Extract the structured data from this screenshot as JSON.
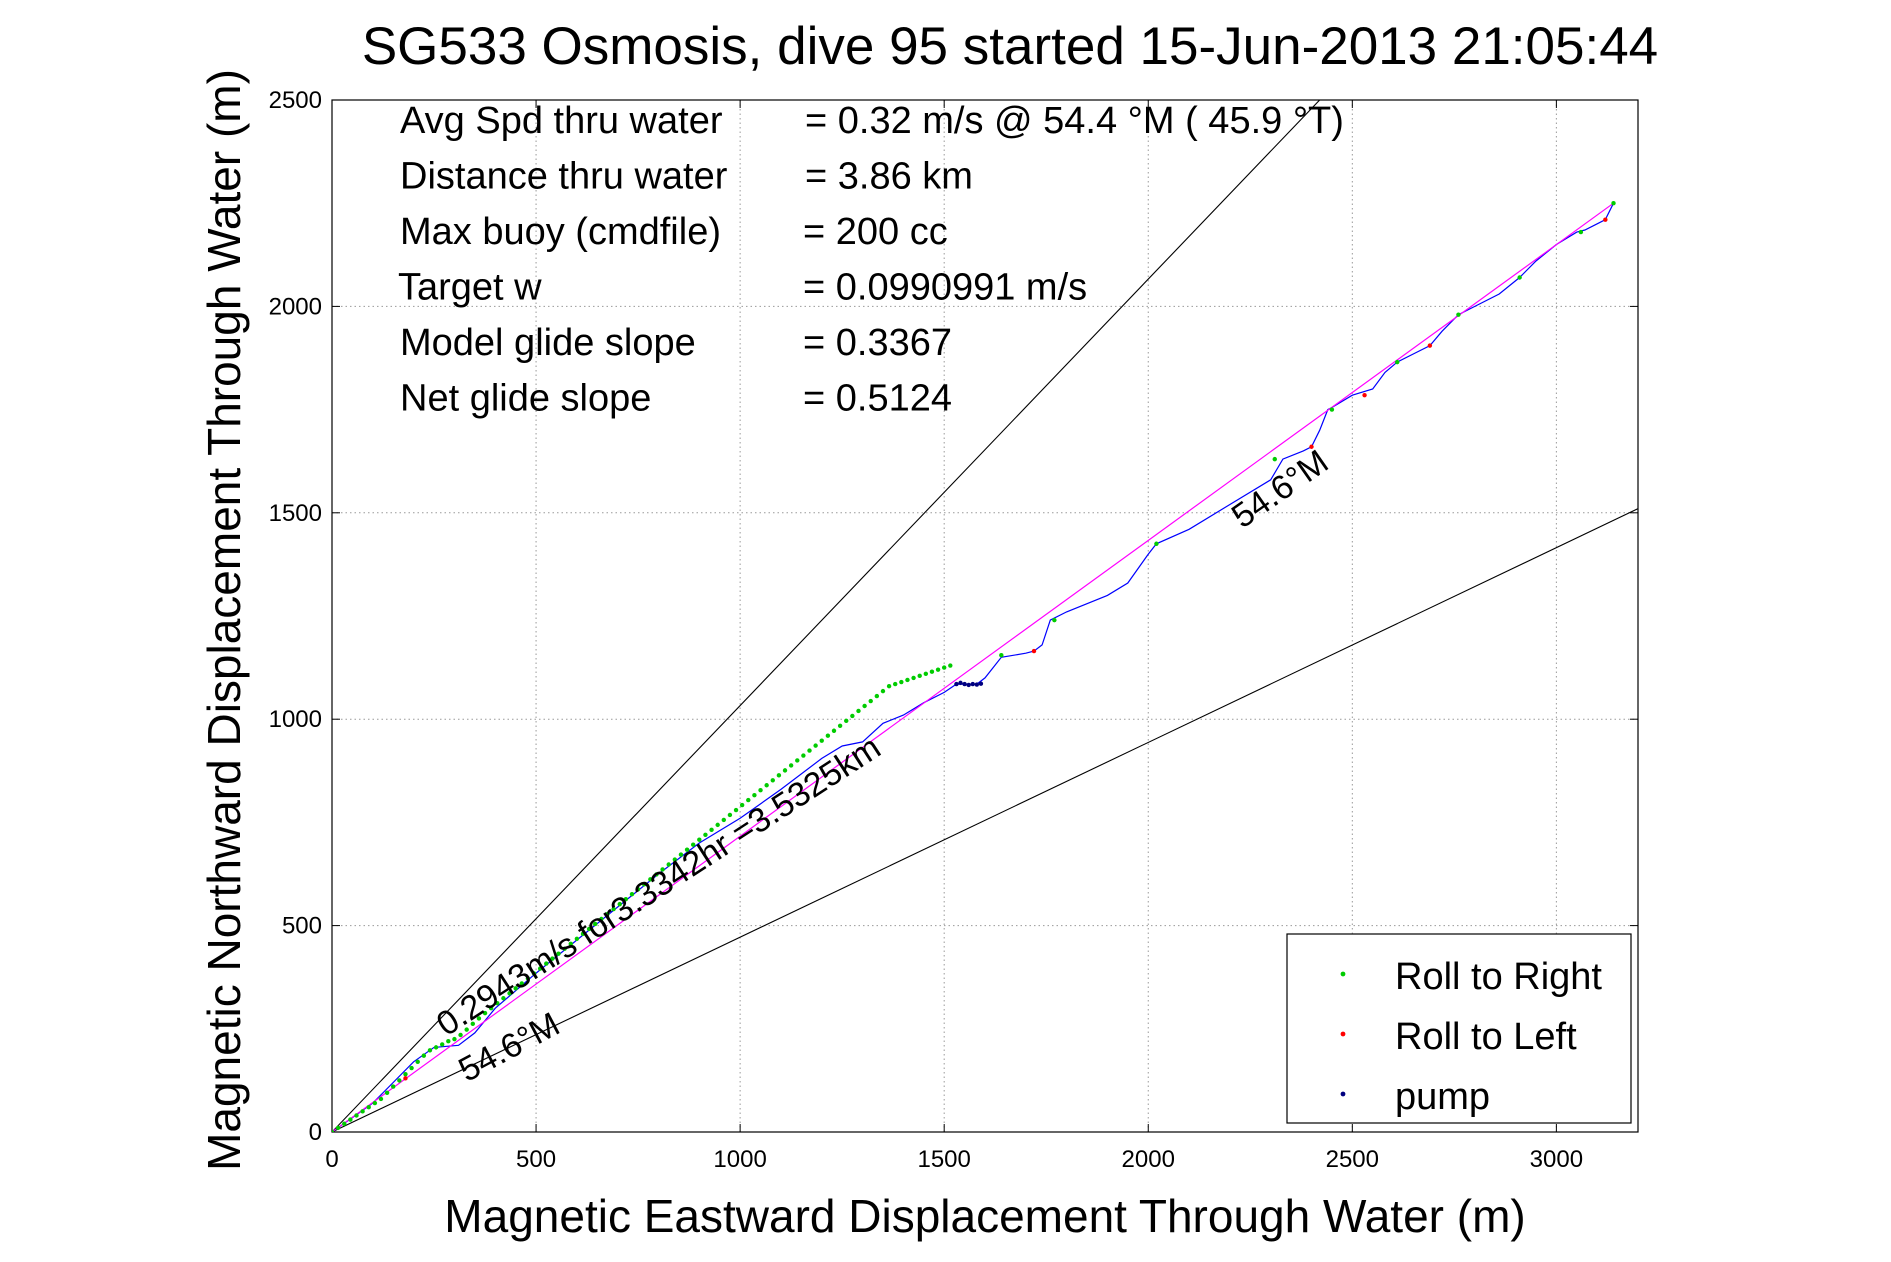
{
  "chart_data": {
    "type": "line",
    "title": "SG533 Osmosis, dive 95 started 15-Jun-2013 21:05:44",
    "xlabel": "Magnetic Eastward Displacement Through Water (m)",
    "ylabel": "Magnetic Northward Displacement Through Water (m)",
    "xlim": [
      0,
      3200
    ],
    "ylim": [
      0,
      2500
    ],
    "xticks": [
      0,
      500,
      1000,
      1500,
      2000,
      2500,
      3000
    ],
    "yticks": [
      0,
      500,
      1000,
      1500,
      2000,
      2500
    ],
    "grid": true,
    "legend_position": "bottom-right",
    "legend": [
      {
        "label": "Roll to Right",
        "color": "#00cc00"
      },
      {
        "label": "Roll to Left",
        "color": "#ff0000"
      },
      {
        "label": "pump",
        "color": "#000080"
      }
    ],
    "stats": [
      {
        "label": "Avg Spd thru water",
        "value": "=  0.32 m/s @  54.4 °M ( 45.9 °T)"
      },
      {
        "label": "Distance thru water",
        "value": "=  3.86 km"
      },
      {
        "label": "Max buoy (cmdfile)",
        "value": "= 200 cc"
      },
      {
        "label": "Target w",
        "value": "= 0.0990991 m/s"
      },
      {
        "label": "Model glide slope",
        "value": "= 0.3367"
      },
      {
        "label": "Net glide slope",
        "value": "= 0.5124"
      }
    ],
    "annotations": {
      "heading_upper": "54.6°M",
      "heading_lower": "54.6°M",
      "speed": "0.2943m/s for3.3342hr =3.5325km"
    },
    "reference_lines": [
      {
        "name": "upper",
        "x": [
          0,
          2420
        ],
        "y": [
          0,
          2500
        ],
        "color": "#000000"
      },
      {
        "name": "lower",
        "x": [
          0,
          3200
        ],
        "y": [
          0,
          1510
        ],
        "color": "#000000"
      }
    ],
    "series": [
      {
        "role": "track",
        "color": "#0000ff",
        "x": [
          0,
          50,
          100,
          150,
          200,
          250,
          310,
          350,
          400,
          500,
          600,
          700,
          800,
          900,
          1000,
          1100,
          1200,
          1250,
          1300,
          1350,
          1400,
          1450,
          1500,
          1530,
          1560,
          1580,
          1600,
          1640,
          1700,
          1720,
          1740,
          1760,
          1800,
          1900,
          1950,
          2000,
          2020,
          2100,
          2200,
          2300,
          2330,
          2380,
          2400,
          2420,
          2440,
          2450,
          2500,
          2550,
          2580,
          2610,
          2650,
          2690,
          2720,
          2760,
          2800,
          2860,
          2910,
          2950,
          3000,
          3050,
          3070,
          3100,
          3120,
          3140
        ],
        "y": [
          0,
          35,
          70,
          120,
          170,
          205,
          210,
          240,
          300,
          385,
          465,
          545,
          625,
          700,
          760,
          830,
          905,
          935,
          945,
          990,
          1010,
          1040,
          1065,
          1085,
          1085,
          1085,
          1100,
          1150,
          1160,
          1165,
          1180,
          1240,
          1260,
          1300,
          1330,
          1400,
          1425,
          1460,
          1520,
          1580,
          1630,
          1650,
          1660,
          1700,
          1750,
          1755,
          1785,
          1800,
          1840,
          1865,
          1885,
          1905,
          1940,
          1980,
          2000,
          2030,
          2070,
          2110,
          2150,
          2180,
          2185,
          2200,
          2210,
          2250
        ]
      },
      {
        "role": "net-heading-line",
        "color": "#ff00ff",
        "x": [
          0,
          3140
        ],
        "y": [
          0,
          2250
        ]
      },
      {
        "name": "Roll to Right",
        "color": "#00cc00",
        "x": [
          0,
          15,
          30,
          45,
          60,
          75,
          90,
          105,
          120,
          135,
          150,
          165,
          180,
          195,
          210,
          225,
          240,
          255,
          270,
          285,
          300,
          315,
          330,
          345,
          360,
          375,
          390,
          405,
          420,
          435,
          450,
          465,
          480,
          495,
          510,
          525,
          540,
          555,
          570,
          585,
          600,
          615,
          630,
          645,
          660,
          675,
          690,
          705,
          720,
          735,
          750,
          765,
          780,
          795,
          810,
          825,
          840,
          855,
          870,
          885,
          900,
          915,
          930,
          945,
          960,
          975,
          990,
          1005,
          1020,
          1035,
          1050,
          1065,
          1080,
          1095,
          1110,
          1125,
          1140,
          1155,
          1170,
          1185,
          1200,
          1215,
          1230,
          1245,
          1260,
          1275,
          1290,
          1305,
          1320,
          1335,
          1350,
          1365,
          1380,
          1395,
          1410,
          1425,
          1440,
          1455,
          1470,
          1485,
          1500,
          1515,
          1640,
          1770,
          2020,
          2310,
          2450,
          2610,
          2760,
          2910,
          3060,
          3140
        ],
        "y": [
          0,
          10,
          20,
          30,
          40,
          50,
          60,
          70,
          80,
          95,
          110,
          125,
          140,
          155,
          170,
          185,
          198,
          205,
          212,
          220,
          225,
          235,
          248,
          262,
          275,
          288,
          300,
          312,
          324,
          336,
          348,
          360,
          372,
          384,
          396,
          408,
          420,
          432,
          444,
          456,
          468,
          480,
          492,
          504,
          516,
          528,
          540,
          552,
          564,
          576,
          588,
          600,
          612,
          624,
          636,
          648,
          660,
          672,
          684,
          696,
          708,
          720,
          732,
          744,
          756,
          768,
          780,
          792,
          804,
          816,
          828,
          840,
          852,
          864,
          876,
          888,
          900,
          912,
          924,
          936,
          948,
          960,
          972,
          984,
          996,
          1008,
          1020,
          1032,
          1044,
          1056,
          1068,
          1080,
          1085,
          1090,
          1095,
          1100,
          1105,
          1110,
          1115,
          1120,
          1125,
          1130,
          1155,
          1240,
          1425,
          1630,
          1750,
          1865,
          1980,
          2070,
          2180,
          2250
        ]
      },
      {
        "name": "Roll to Left",
        "color": "#ff0000",
        "x": [
          180,
          1720,
          2400,
          2530,
          2690,
          3120
        ],
        "y": [
          130,
          1165,
          1660,
          1785,
          1905,
          2210
        ]
      },
      {
        "name": "pump",
        "color": "#000080",
        "x": [
          1530,
          1540,
          1550,
          1560,
          1570,
          1580,
          1590
        ],
        "y": [
          1085,
          1088,
          1085,
          1083,
          1085,
          1084,
          1086
        ]
      }
    ]
  }
}
